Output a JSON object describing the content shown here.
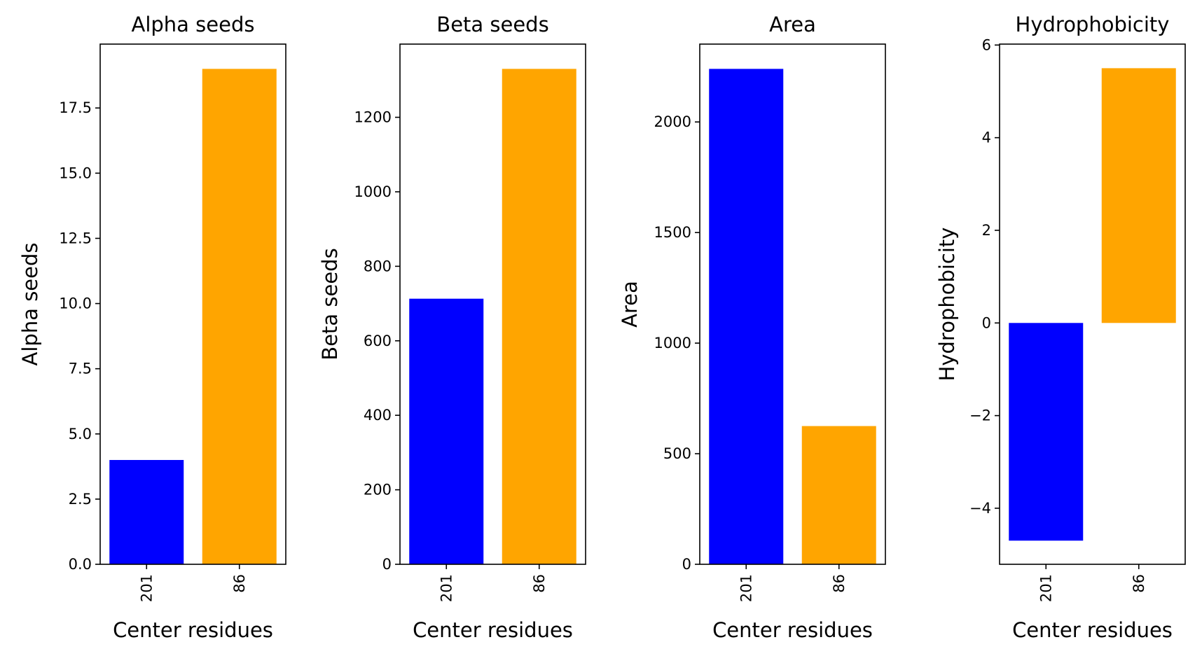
{
  "chart_data": [
    {
      "type": "bar",
      "title": "Alpha seeds",
      "xlabel": "Center residues",
      "ylabel": "Alpha seeds",
      "categories": [
        "201",
        "86"
      ],
      "values": [
        4,
        19
      ],
      "colors": [
        "#0000ff",
        "#ffa500"
      ],
      "ylim": [
        0,
        19.95
      ],
      "yticks": [
        0.0,
        2.5,
        5.0,
        7.5,
        10.0,
        12.5,
        15.0,
        17.5
      ],
      "ytick_labels": [
        "0.0",
        "2.5",
        "5.0",
        "7.5",
        "10.0",
        "12.5",
        "15.0",
        "17.5"
      ],
      "xtick_rotation": "vertical",
      "grid": false,
      "legend": "none"
    },
    {
      "type": "bar",
      "title": "Beta seeds",
      "xlabel": "Center residues",
      "ylabel": "Beta seeds",
      "categories": [
        "201",
        "86"
      ],
      "values": [
        713,
        1330
      ],
      "colors": [
        "#0000ff",
        "#ffa500"
      ],
      "ylim": [
        0,
        1396.5
      ],
      "yticks": [
        0,
        200,
        400,
        600,
        800,
        1000,
        1200
      ],
      "ytick_labels": [
        "0",
        "200",
        "400",
        "600",
        "800",
        "1000",
        "1200"
      ],
      "xtick_rotation": "vertical",
      "grid": false,
      "legend": "none"
    },
    {
      "type": "bar",
      "title": "Area",
      "xlabel": "Center residues",
      "ylabel": "Area",
      "categories": [
        "201",
        "86"
      ],
      "values": [
        2240,
        625
      ],
      "colors": [
        "#0000ff",
        "#ffa500"
      ],
      "ylim": [
        0,
        2352
      ],
      "yticks": [
        0,
        500,
        1000,
        1500,
        2000
      ],
      "ytick_labels": [
        "0",
        "500",
        "1000",
        "1500",
        "2000"
      ],
      "xtick_rotation": "vertical",
      "grid": false,
      "legend": "none"
    },
    {
      "type": "bar",
      "title": "Hydrophobicity",
      "xlabel": "Center residues",
      "ylabel": "Hydrophobicity",
      "categories": [
        "201",
        "86"
      ],
      "values": [
        -4.7,
        5.5
      ],
      "colors": [
        "#0000ff",
        "#ffa500"
      ],
      "ylim": [
        -5.21,
        6.02
      ],
      "yticks": [
        -4,
        -2,
        0,
        2,
        4,
        6
      ],
      "ytick_labels": [
        "−4",
        "−2",
        "0",
        "2",
        "4",
        "6"
      ],
      "xtick_rotation": "vertical",
      "grid": false,
      "legend": "none"
    }
  ]
}
